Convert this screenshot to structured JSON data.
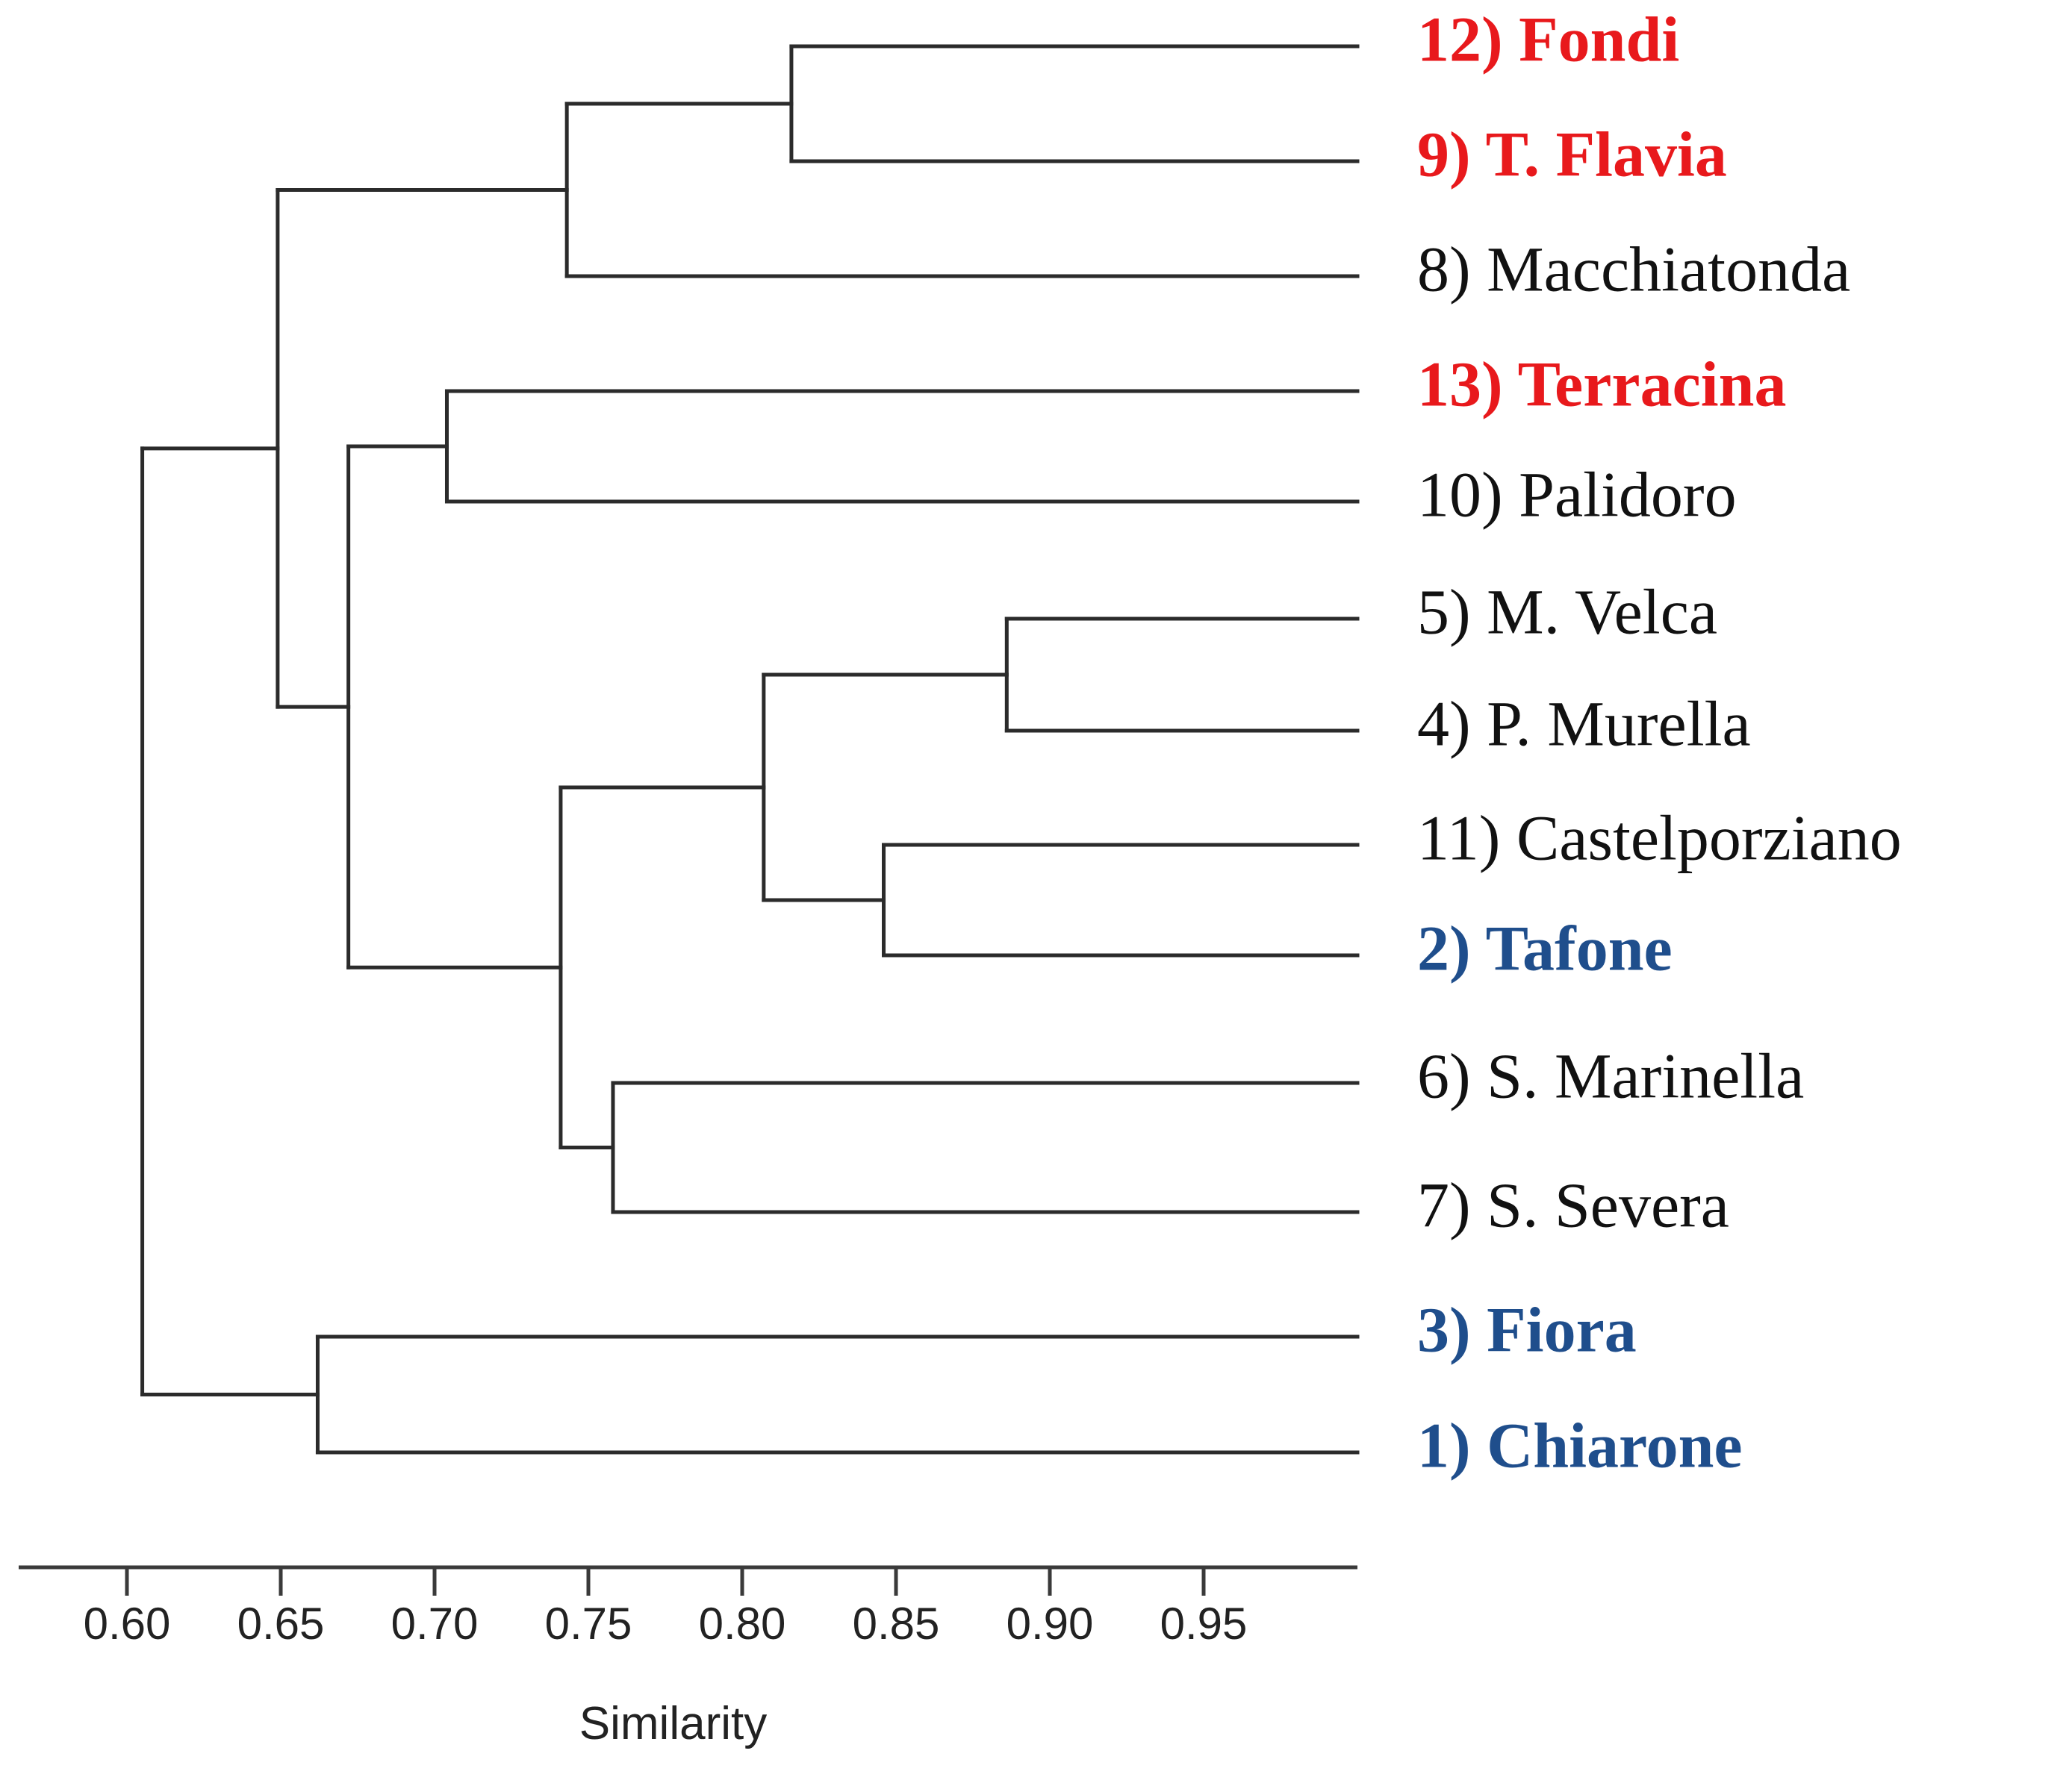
{
  "chart_data": {
    "type": "dendrogram",
    "xlabel": "Similarity",
    "xlim": [
      0.57,
      1.0
    ],
    "ticks": [
      0.6,
      0.65,
      0.7,
      0.75,
      0.8,
      0.85,
      0.9,
      0.95
    ],
    "tick_labels": [
      "0.60",
      "0.65",
      "0.70",
      "0.75",
      "0.80",
      "0.85",
      "0.90",
      "0.95"
    ],
    "colors": {
      "red": "#e8191c",
      "blue": "#1f4e8c",
      "black": "#111111",
      "line": "#2b2b2b"
    },
    "leaves": [
      {
        "id": "L12",
        "label": "12) Fondi",
        "color": "red",
        "bold": true
      },
      {
        "id": "L9",
        "label": "9) T. Flavia",
        "color": "red",
        "bold": true
      },
      {
        "id": "L8",
        "label": "8) Macchiatonda",
        "color": "black",
        "bold": false
      },
      {
        "id": "L13",
        "label": "13) Terracina",
        "color": "red",
        "bold": true
      },
      {
        "id": "L10",
        "label": "10) Palidoro",
        "color": "black",
        "bold": false
      },
      {
        "id": "L5",
        "label": "5) M. Velca",
        "color": "black",
        "bold": false
      },
      {
        "id": "L4",
        "label": "4) P. Murella",
        "color": "black",
        "bold": false
      },
      {
        "id": "L11",
        "label": "11) Castelporziano",
        "color": "black",
        "bold": false
      },
      {
        "id": "L2",
        "label": "2) Tafone",
        "color": "blue",
        "bold": true
      },
      {
        "id": "L6",
        "label": "6) S. Marinella",
        "color": "black",
        "bold": false
      },
      {
        "id": "L7",
        "label": "7) S. Severa",
        "color": "black",
        "bold": false
      },
      {
        "id": "L3",
        "label": "3) Fiora",
        "color": "blue",
        "bold": true
      },
      {
        "id": "L1",
        "label": "1) Chiarone",
        "color": "blue",
        "bold": true
      }
    ],
    "merges": [
      {
        "id": "A",
        "children": [
          "L12",
          "L9"
        ],
        "similarity": 0.816
      },
      {
        "id": "B",
        "children": [
          "A",
          "L8"
        ],
        "similarity": 0.743
      },
      {
        "id": "C",
        "children": [
          "L13",
          "L10"
        ],
        "similarity": 0.704
      },
      {
        "id": "D",
        "children": [
          "L5",
          "L4"
        ],
        "similarity": 0.886
      },
      {
        "id": "E",
        "children": [
          "L11",
          "L2"
        ],
        "similarity": 0.846
      },
      {
        "id": "F",
        "children": [
          "D",
          "E"
        ],
        "similarity": 0.807
      },
      {
        "id": "G",
        "children": [
          "L6",
          "L7"
        ],
        "similarity": 0.758
      },
      {
        "id": "H",
        "children": [
          "F",
          "G"
        ],
        "similarity": 0.741
      },
      {
        "id": "I",
        "children": [
          "C",
          "H"
        ],
        "similarity": 0.672
      },
      {
        "id": "J",
        "children": [
          "B",
          "I"
        ],
        "similarity": 0.649
      },
      {
        "id": "K",
        "children": [
          "L3",
          "L1"
        ],
        "similarity": 0.662
      },
      {
        "id": "R",
        "children": [
          "J",
          "K"
        ],
        "similarity": 0.605
      }
    ]
  }
}
